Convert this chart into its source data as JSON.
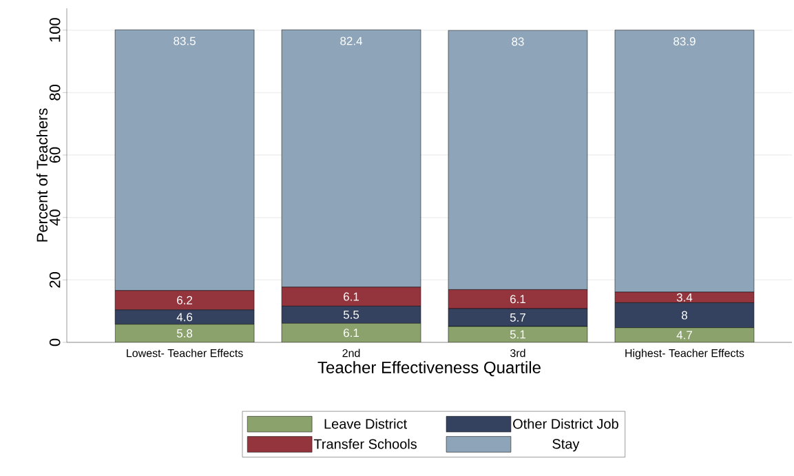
{
  "chart_data": {
    "type": "bar",
    "stacked": true,
    "categories": [
      "Lowest- Teacher Effects",
      "2nd",
      "3rd",
      "Highest- Teacher Effects"
    ],
    "xlabel": "Teacher Effectiveness Quartile",
    "ylabel": "Percent of Teachers",
    "series": [
      {
        "name": "Leave District",
        "color": "#8ba26c",
        "values": [
          5.8,
          6.1,
          5.1,
          4.7
        ]
      },
      {
        "name": "Other District Job",
        "color": "#35425f",
        "values": [
          4.6,
          5.5,
          5.7,
          8
        ]
      },
      {
        "name": "Transfer Schools",
        "color": "#94353e",
        "values": [
          6.2,
          6.1,
          6.1,
          3.4
        ]
      },
      {
        "name": "Stay",
        "color": "#8ea4b9",
        "values": [
          83.5,
          82.4,
          83,
          83.9
        ]
      }
    ],
    "ylim": [
      0,
      107
    ],
    "yticks": [
      0,
      20,
      40,
      60,
      80,
      100
    ],
    "grid": "y",
    "legend": "bottom",
    "data_labels": true
  }
}
